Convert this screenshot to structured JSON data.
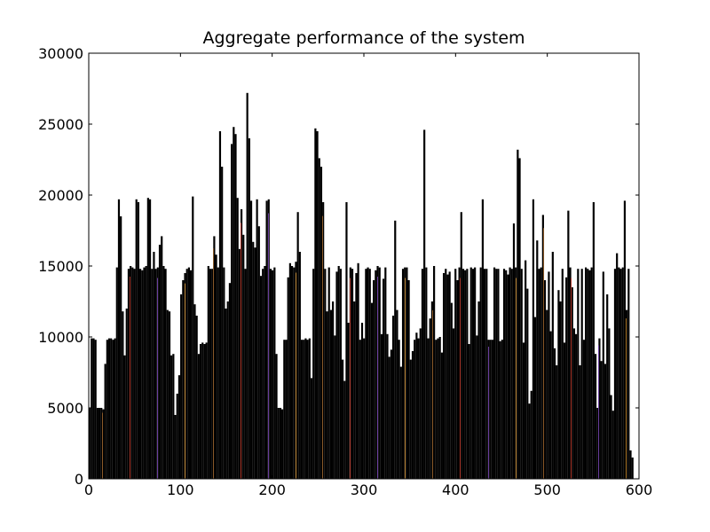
{
  "chart_data": {
    "type": "bar",
    "title": "Aggregate performance of the system",
    "xlabel": "",
    "ylabel": "",
    "xlim": [
      0,
      600
    ],
    "ylim": [
      0,
      30000
    ],
    "x_ticks": [
      0,
      100,
      200,
      300,
      400,
      500,
      600
    ],
    "y_ticks": [
      0,
      5000,
      10000,
      15000,
      20000,
      25000,
      30000
    ],
    "grid": false,
    "legend": "none",
    "bar_color": "#000000",
    "x_range_of_bars": [
      0,
      594
    ],
    "values_sampled_every_2": [
      5000,
      9900,
      9900,
      9800,
      5000,
      5000,
      5000,
      4900,
      8100,
      9800,
      9900,
      9900,
      9800,
      9900,
      14900,
      19700,
      18500,
      11800,
      8700,
      12000,
      14800,
      15000,
      14900,
      14800,
      19700,
      19500,
      14800,
      14700,
      14900,
      15000,
      19800,
      19700,
      14800,
      16000,
      14800,
      14900,
      16500,
      17100,
      15000,
      14800,
      11900,
      11800,
      8700,
      8800,
      4500,
      6000,
      7300,
      13000,
      14000,
      14500,
      14800,
      14900,
      14700,
      19900,
      12300,
      11500,
      8800,
      9500,
      9600,
      9500,
      9600,
      15000,
      14800,
      14800,
      17100,
      15800,
      14900,
      24500,
      22000,
      14900,
      12000,
      12500,
      13800,
      23600,
      24800,
      24300,
      19800,
      16200,
      19000,
      17200,
      14800,
      27200,
      24000,
      19600,
      16700,
      16300,
      19700,
      17800,
      14300,
      14800,
      15000,
      19600,
      19700,
      14800,
      14700,
      14900,
      8800,
      5000,
      5000,
      4900,
      9800,
      9800,
      14200,
      15200,
      15000,
      14900,
      15300,
      18800,
      16000,
      9800,
      9800,
      9900,
      9800,
      9900,
      7100,
      14800,
      24700,
      24500,
      22600,
      22000,
      19500,
      14800,
      11800,
      14900,
      11900,
      12500,
      10100,
      14600,
      15000,
      14800,
      8400,
      6900,
      19500,
      11000,
      14900,
      14800,
      12500,
      14500,
      15200,
      9800,
      11000,
      9900,
      14800,
      14900,
      14800,
      12400,
      14000,
      14700,
      15000,
      14900,
      10200,
      14100,
      14900,
      10200,
      8600,
      9100,
      11500,
      18200,
      11900,
      9800,
      7900,
      14800,
      14900,
      14900,
      14000,
      8400,
      9000,
      9800,
      10300,
      9900,
      10600,
      14800,
      24600,
      14900,
      9900,
      11300,
      12500,
      15000,
      9800,
      9900,
      10000,
      8900,
      14500,
      14800,
      14400,
      14600,
      12400,
      10600,
      14800,
      14000,
      14900,
      18800,
      14800,
      14700,
      14800,
      9500,
      14900,
      14800,
      14900,
      10100,
      12500,
      14900,
      19700,
      14800,
      14800,
      9800,
      9800,
      9800,
      14900,
      14800,
      14800,
      9700,
      9800,
      14800,
      14700,
      14400,
      14900,
      14800,
      18000,
      14900,
      23200,
      22600,
      14800,
      9600,
      15400,
      13400,
      5300,
      6200,
      19700,
      11400,
      16800,
      14800,
      14900,
      18600,
      14000,
      11900,
      14600,
      10400,
      16000,
      9200,
      8000,
      13300,
      12500,
      14800,
      9600,
      14200,
      18900,
      14900,
      13500,
      10600,
      10200,
      14800,
      8000,
      14800,
      9800,
      14900,
      14800,
      14700,
      14900,
      19500,
      8800,
      5000,
      9900,
      8300,
      14600,
      8100,
      13000,
      10600,
      5900,
      4800,
      14800,
      15900,
      14900,
      14800,
      14900,
      19600,
      11900,
      14800,
      2000,
      1500
    ],
    "colored_line_positions": [
      15,
      45,
      75,
      105,
      136,
      166,
      196,
      226,
      255,
      285,
      315,
      345,
      375,
      405,
      436,
      466,
      496,
      526,
      556,
      586
    ]
  }
}
